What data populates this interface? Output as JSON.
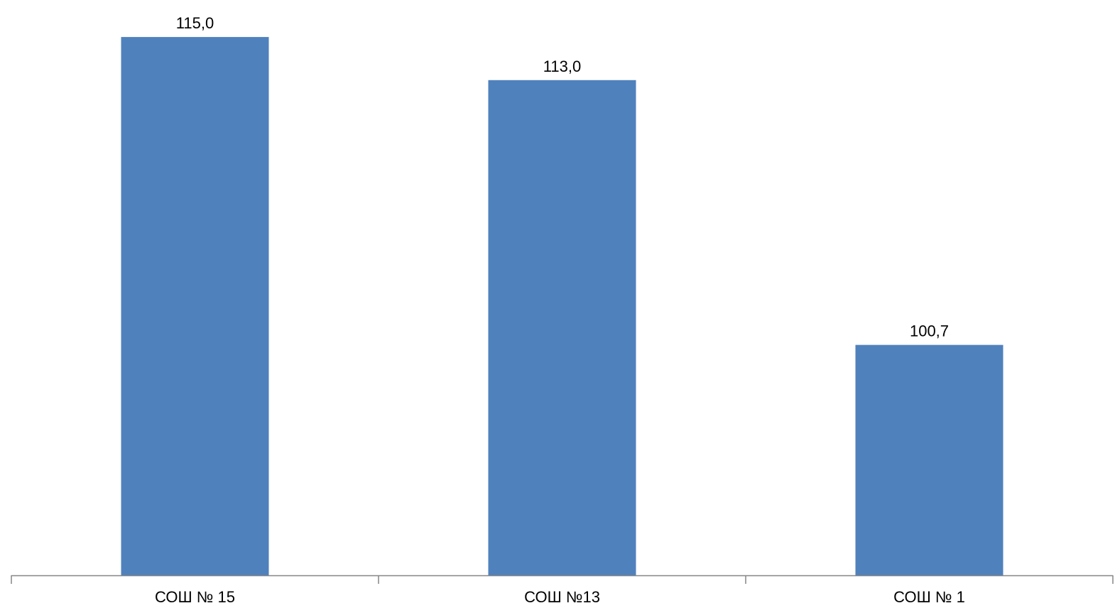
{
  "chart_data": {
    "type": "bar",
    "categories": [
      "СОШ № 15",
      "СОШ №13",
      "СОШ № 1"
    ],
    "values": [
      115.0,
      113.0,
      100.7
    ],
    "data_labels": [
      "115,0",
      "113,0",
      "100,7"
    ],
    "title": "",
    "xlabel": "",
    "ylabel": "",
    "ylim": [
      90,
      115.4
    ],
    "grid": false,
    "legend": "none",
    "bar_color": "#4F81BD",
    "axis_color": "#868686"
  }
}
